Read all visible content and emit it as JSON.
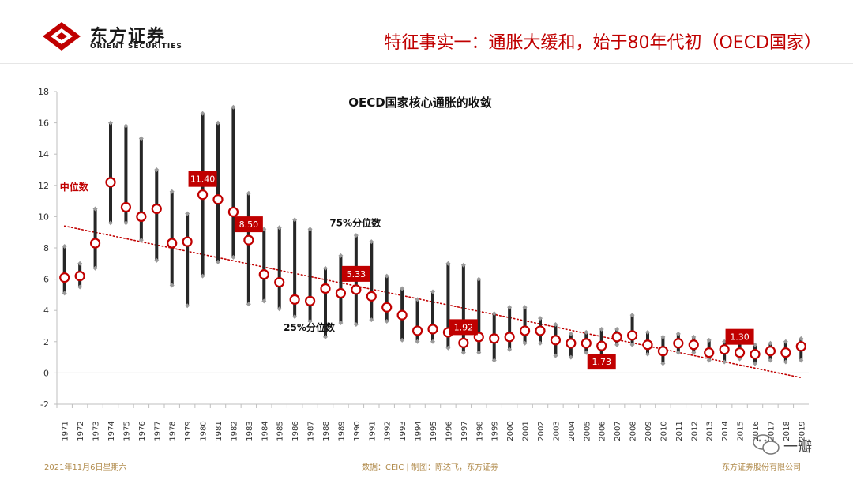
{
  "header": {
    "logo_cn": "东方证券",
    "logo_en": "ORIENT SECURITIES",
    "slide_title": "特征事实一：通胀大缓和，始于80年代初（OECD国家）"
  },
  "footer": {
    "date": "2021年11月6日星期六",
    "source": "数据：CEIC | 制图：陈达飞，东方证券",
    "company": "东方证券股份有限公司"
  },
  "watermark": {
    "text": "一瓣"
  },
  "colors": {
    "accent": "#c00000",
    "bar": "#262626",
    "whisker": "#9a9a9a",
    "trend": "#c00000"
  },
  "chart_data": {
    "type": "range-dot",
    "title": "OECD国家核心通胀的收敛",
    "categories": [
      "1971",
      "1972",
      "1973",
      "1974",
      "1975",
      "1976",
      "1977",
      "1978",
      "1979",
      "1980",
      "1981",
      "1982",
      "1983",
      "1984",
      "1985",
      "1986",
      "1987",
      "1988",
      "1989",
      "1990",
      "1991",
      "1992",
      "1993",
      "1994",
      "1995",
      "1996",
      "1997",
      "1998",
      "1999",
      "2000",
      "2001",
      "2002",
      "2003",
      "2004",
      "2005",
      "2006",
      "2007",
      "2008",
      "2009",
      "2010",
      "2011",
      "2012",
      "2013",
      "2014",
      "2015",
      "2016",
      "2017",
      "2018",
      "2019"
    ],
    "series": [
      {
        "name": "中位数",
        "values": [
          6.1,
          6.2,
          8.3,
          12.2,
          10.6,
          10.0,
          10.5,
          8.3,
          8.4,
          11.4,
          11.1,
          10.3,
          8.5,
          6.3,
          5.8,
          4.7,
          4.6,
          5.4,
          5.1,
          5.33,
          4.9,
          4.2,
          3.7,
          2.7,
          2.8,
          2.6,
          1.92,
          2.3,
          2.2,
          2.3,
          2.7,
          2.7,
          2.1,
          1.9,
          1.9,
          1.73,
          2.3,
          2.4,
          1.8,
          1.4,
          1.9,
          1.8,
          1.3,
          1.5,
          1.3,
          1.2,
          1.4,
          1.3,
          1.7
        ]
      },
      {
        "name": "75%分位数",
        "values": [
          8.1,
          7.0,
          10.5,
          16.0,
          15.8,
          15.0,
          13.0,
          11.6,
          10.2,
          16.6,
          16.0,
          17.0,
          11.5,
          9.2,
          9.3,
          9.8,
          9.2,
          6.7,
          7.5,
          8.8,
          8.4,
          6.2,
          5.4,
          4.7,
          5.2,
          7.0,
          6.9,
          6.0,
          3.8,
          4.2,
          4.2,
          3.5,
          3.1,
          2.5,
          2.6,
          2.8,
          2.8,
          3.7,
          2.6,
          2.3,
          2.5,
          2.3,
          2.1,
          2.0,
          2.0,
          1.8,
          1.9,
          2.0,
          2.2
        ]
      },
      {
        "name": "25%分位数",
        "values": [
          5.1,
          5.5,
          6.7,
          9.6,
          9.6,
          8.5,
          7.2,
          5.6,
          4.3,
          6.2,
          7.1,
          7.4,
          4.4,
          4.6,
          4.1,
          3.6,
          3.3,
          2.3,
          3.2,
          3.1,
          3.4,
          3.3,
          2.1,
          2.0,
          2.0,
          1.6,
          1.3,
          1.3,
          0.8,
          1.5,
          1.9,
          1.9,
          1.1,
          1.0,
          1.3,
          0.9,
          1.8,
          1.8,
          1.2,
          0.6,
          1.3,
          1.3,
          0.8,
          0.7,
          0.9,
          0.6,
          0.8,
          0.7,
          0.8
        ]
      }
    ],
    "labeled_points": [
      {
        "category": "1980",
        "label": "11.40",
        "position": "above"
      },
      {
        "category": "1983",
        "label": "8.50",
        "position": "above"
      },
      {
        "category": "1990",
        "label": "5.33",
        "position": "above"
      },
      {
        "category": "1997",
        "label": "1.92",
        "position": "above"
      },
      {
        "category": "2006",
        "label": "1.73",
        "position": "below"
      },
      {
        "category": "2015",
        "label": "1.30",
        "position": "above"
      }
    ],
    "annotations": [
      {
        "text": "中位数",
        "target": "median",
        "category": "1971",
        "value": 11.9
      },
      {
        "text": "75%分位数",
        "target": "p75",
        "category": "1989",
        "value": 9.6
      },
      {
        "text": "25%分位数",
        "target": "p25",
        "category": "1986",
        "value": 2.9
      }
    ],
    "trendline": {
      "type": "linear",
      "style": "dotted",
      "from": {
        "category": "1971",
        "value": 9.4
      },
      "to": {
        "category": "2019",
        "value": -0.3
      }
    },
    "ylim": [
      -2,
      18
    ],
    "yticks": [
      -2,
      0,
      2,
      4,
      6,
      8,
      10,
      12,
      14,
      16,
      18
    ],
    "xlabel": "",
    "ylabel": "",
    "grid": false,
    "legend": "none"
  }
}
